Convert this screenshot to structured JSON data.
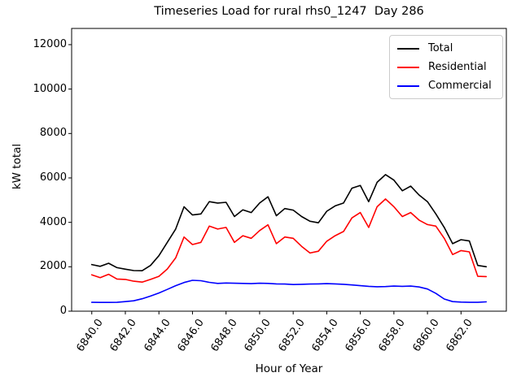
{
  "title": "Timeseries Load for rural rhs0_1247  Day 286",
  "legend": {
    "items": [
      {
        "label": "Total"
      },
      {
        "label": "Residential"
      },
      {
        "label": "Commercial"
      }
    ]
  },
  "chart_data": {
    "type": "line",
    "title": "Timeseries Load for rural rhs0_1247  Day 286",
    "xlabel": "Hour of Year",
    "ylabel": "kW total",
    "xlim": [
      6838.8,
      6864.7
    ],
    "ylim": [
      0,
      12730
    ],
    "grid": false,
    "legend_position": "upper right",
    "xticks": [
      6840,
      6842,
      6844,
      6846,
      6848,
      6850,
      6852,
      6854,
      6856,
      6858,
      6860,
      6862
    ],
    "xtick_labels": [
      "6840.0",
      "6842.0",
      "6844.0",
      "6846.0",
      "6848.0",
      "6850.0",
      "6852.0",
      "6854.0",
      "6856.0",
      "6858.0",
      "6860.0",
      "6862.0"
    ],
    "yticks": [
      0,
      2000,
      4000,
      6000,
      8000,
      10000,
      12000
    ],
    "ytick_labels": [
      "0",
      "2000",
      "4000",
      "6000",
      "8000",
      "10000",
      "12000"
    ],
    "x": [
      6840.0,
      6840.5,
      6841.0,
      6841.5,
      6842.0,
      6842.5,
      6843.0,
      6843.5,
      6844.0,
      6844.5,
      6845.0,
      6845.5,
      6846.0,
      6846.5,
      6847.0,
      6847.5,
      6848.0,
      6848.5,
      6849.0,
      6849.5,
      6850.0,
      6850.5,
      6851.0,
      6851.5,
      6852.0,
      6852.5,
      6853.0,
      6853.5,
      6854.0,
      6854.5,
      6855.0,
      6855.5,
      6856.0,
      6856.5,
      6857.0,
      6857.5,
      6858.0,
      6858.5,
      6859.0,
      6859.5,
      6860.0,
      6860.5,
      6861.0,
      6861.5,
      6862.0,
      6862.5,
      6863.0,
      6863.5
    ],
    "series": [
      {
        "name": "Total",
        "color": "#000000",
        "values": [
          2100,
          2020,
          2160,
          1960,
          1890,
          1830,
          1820,
          2060,
          2500,
          3100,
          3700,
          4700,
          4330,
          4380,
          4930,
          4870,
          4900,
          4260,
          4560,
          4440,
          4870,
          5150,
          4300,
          4620,
          4550,
          4260,
          4050,
          3980,
          4500,
          4740,
          4870,
          5540,
          5660,
          4930,
          5800,
          6150,
          5900,
          5420,
          5630,
          5230,
          4930,
          4380,
          3770,
          3040,
          3220,
          3160,
          2060,
          2000
        ]
      },
      {
        "name": "Residential",
        "color": "#ff0000",
        "values": [
          1640,
          1510,
          1660,
          1450,
          1430,
          1350,
          1310,
          1430,
          1570,
          1900,
          2400,
          3340,
          3000,
          3100,
          3830,
          3700,
          3770,
          3100,
          3400,
          3280,
          3630,
          3890,
          3040,
          3340,
          3280,
          2920,
          2620,
          2700,
          3150,
          3400,
          3590,
          4200,
          4440,
          3770,
          4700,
          5050,
          4700,
          4260,
          4440,
          4100,
          3900,
          3830,
          3280,
          2550,
          2730,
          2670,
          1570,
          1560
        ]
      },
      {
        "name": "Commercial",
        "color": "#0000ff",
        "values": [
          400,
          395,
          395,
          400,
          430,
          470,
          560,
          680,
          820,
          980,
          1150,
          1290,
          1390,
          1370,
          1300,
          1250,
          1270,
          1260,
          1250,
          1240,
          1260,
          1250,
          1230,
          1220,
          1200,
          1210,
          1220,
          1230,
          1240,
          1230,
          1210,
          1180,
          1150,
          1120,
          1100,
          1110,
          1130,
          1120,
          1130,
          1090,
          1000,
          800,
          550,
          430,
          410,
          400,
          400,
          420
        ]
      }
    ]
  }
}
